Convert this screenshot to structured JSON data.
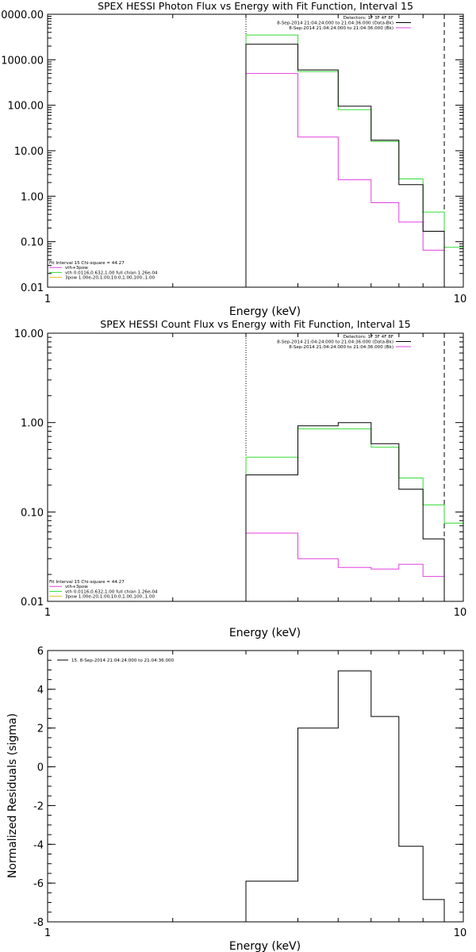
{
  "chart_data": [
    {
      "type": "line",
      "step": true,
      "title": "SPEX HESSI Photon Flux vs Energy with Fit Function, Interval 15",
      "xlabel": "Energy (keV)",
      "ylabel": "",
      "xscale": "log",
      "yscale": "log",
      "xlim": [
        1,
        10
      ],
      "ylim": [
        0.01,
        10000
      ],
      "x_tick_labels": [
        "1",
        "10"
      ],
      "y_tick_labels": [
        "0.01",
        "0.10",
        "1.00",
        "10.00",
        "100.00",
        "1000.00",
        "0000.00"
      ],
      "vlines": [
        {
          "x": 3.0,
          "style": "dotted"
        },
        {
          "x": 9.0,
          "style": "dashed"
        }
      ],
      "bin_edges": [
        3.0,
        4.0,
        5.0,
        6.0,
        7.0,
        8.0,
        9.0,
        10.0
      ],
      "series": [
        {
          "name": "",
          "color": "#000000",
          "values": [
            2200,
            600,
            95,
            17,
            1.8,
            0.17,
            null
          ]
        },
        {
          "name": "vth+3pow",
          "color": "#e040e0",
          "values": [
            500,
            20,
            2.3,
            0.72,
            0.27,
            0.065,
            null
          ]
        },
        {
          "name": "vth 0.0116,0.632,1.00 full chian 1.26e-04",
          "color": "#33dd33",
          "values": [
            3500,
            550,
            80,
            16,
            2.4,
            0.45,
            0.075
          ]
        }
      ],
      "legend_top_right": [
        {
          "text": "Detectors: 1F 3F 4F 8F",
          "color": "#000000"
        },
        {
          "text": "8-Sep-2014 21:04:24.000 to 21:04:36.000 (Data-Bk)",
          "color": "#000000"
        },
        {
          "text": "8-Sep-2014 21:04:24.000 to 21:04:36.000 (Bk)",
          "color": "#e040e0"
        }
      ],
      "legend_bottom_left": [
        {
          "text": "Fit Interval 15   Chi-square = 44.27",
          "color": "#000000"
        },
        {
          "text": "vth+3pow",
          "color": "#e040e0"
        },
        {
          "text": "vth 0.0116,0.632,1.00  full chian 1.26e-04",
          "color": "#33dd33"
        },
        {
          "text": "3pow 1.00e-20,1.00,10.0,1.00,100.,1.00",
          "color": "#e0c020"
        }
      ]
    },
    {
      "type": "line",
      "step": true,
      "title": "SPEX HESSI Count Flux vs Energy with Fit Function, Interval 15",
      "xlabel": "Energy (keV)",
      "ylabel": "",
      "xscale": "log",
      "yscale": "log",
      "xlim": [
        1,
        10
      ],
      "ylim": [
        0.01,
        10
      ],
      "x_tick_labels": [
        "1",
        "10"
      ],
      "y_tick_labels": [
        "0.01",
        "0.10",
        "1.00",
        "10.00"
      ],
      "vlines": [
        {
          "x": 3.0,
          "style": "dotted"
        },
        {
          "x": 9.0,
          "style": "dashed"
        }
      ],
      "bin_edges": [
        3.0,
        4.0,
        5.0,
        6.0,
        7.0,
        8.0,
        9.0,
        10.0
      ],
      "series": [
        {
          "name": "",
          "color": "#000000",
          "values": [
            0.26,
            0.92,
            1.0,
            0.58,
            0.18,
            0.05,
            null
          ]
        },
        {
          "name": "vth+3pow",
          "color": "#e040e0",
          "values": [
            0.058,
            0.03,
            0.024,
            0.023,
            0.026,
            0.019,
            null
          ]
        },
        {
          "name": "vth 0.0116,0.632,1.00 full chian 1.26e-04",
          "color": "#33dd33",
          "values": [
            0.41,
            0.85,
            0.85,
            0.53,
            0.24,
            0.12,
            0.075
          ]
        }
      ],
      "legend_top_right": [
        {
          "text": "Detectors: 1F 3F 4F 8F",
          "color": "#000000"
        },
        {
          "text": "8-Sep-2014 21:04:24.000 to 21:04:36.000 (Data-Bk)",
          "color": "#000000"
        },
        {
          "text": "8-Sep-2014 21:04:24.000 to 21:04:36.000 (Bk)",
          "color": "#e040e0"
        }
      ],
      "legend_bottom_left": [
        {
          "text": "Fit Interval 15   Chi-square = 44.27",
          "color": "#000000"
        },
        {
          "text": "vth+3pow",
          "color": "#e040e0"
        },
        {
          "text": "vth 0.0116,0.632,1.00  full chian 1.26e-04",
          "color": "#33dd33"
        },
        {
          "text": "3pow 1.00e-20,1.00,10.0,1.00,100.,1.00",
          "color": "#e0c020"
        }
      ]
    },
    {
      "type": "line",
      "step": true,
      "title": "",
      "xlabel": "Energy (keV)",
      "ylabel": "Normalized Residuals (sigma)",
      "xscale": "log",
      "yscale": "linear",
      "xlim": [
        1,
        10
      ],
      "ylim": [
        -8,
        6
      ],
      "x_tick_labels": [
        "1",
        "10"
      ],
      "y_tick_labels": [
        "-8",
        "-6",
        "-4",
        "-2",
        "0",
        "2",
        "4",
        "6"
      ],
      "bin_edges": [
        3.0,
        4.0,
        5.0,
        6.0,
        7.0,
        8.0,
        9.0
      ],
      "series": [
        {
          "name": "15.  8-Sep-2014 21:04:24.000 to 21:04:36.000",
          "color": "#000000",
          "values": [
            -5.9,
            2.0,
            4.95,
            2.6,
            -4.1,
            -6.85
          ]
        }
      ],
      "legend_top_left": [
        {
          "text": "15.  8-Sep-2014 21:04:24.000 to 21:04:36.000",
          "color": "#000000"
        }
      ]
    }
  ]
}
